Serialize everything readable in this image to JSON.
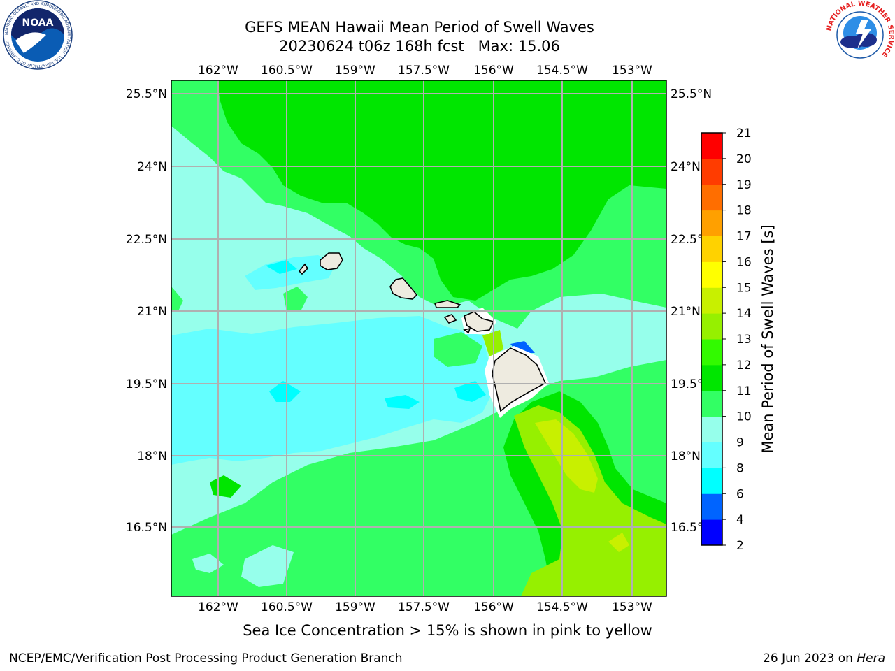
{
  "title": {
    "line1": "GEFS MEAN Hawaii Mean Period of Swell Waves",
    "line2": "20230624 t06z 168h fcst   Max: 15.06"
  },
  "map": {
    "lon_labels": [
      "162°W",
      "160.5°W",
      "159°W",
      "157.5°W",
      "156°W",
      "154.5°W",
      "153°W"
    ],
    "lat_labels": [
      "25.5°N",
      "24°N",
      "22.5°N",
      "21°N",
      "19.5°N",
      "18°N",
      "16.5°N"
    ],
    "islands": [
      "Niihau",
      "Kauai",
      "Oahu",
      "Molokai",
      "Lanai",
      "Maui",
      "Kahoolawe",
      "Hawaii"
    ]
  },
  "colorbar": {
    "label": "Mean Period of Swell Waves [s]",
    "ticks": [
      "2",
      "4",
      "6",
      "8",
      "9",
      "10",
      "11",
      "12",
      "13",
      "14",
      "15",
      "16",
      "17",
      "18",
      "19",
      "20",
      "21"
    ],
    "colors": [
      "#0000ff",
      "#0064ff",
      "#00ffff",
      "#64ffff",
      "#96ffeb",
      "#32ff64",
      "#00e600",
      "#32fa00",
      "#96f000",
      "#c8f000",
      "#ffff00",
      "#ffd200",
      "#ffa000",
      "#ff6e00",
      "#ff3c00",
      "#ff0000"
    ]
  },
  "note": "Sea Ice Concentration > 15% is shown in pink to yellow",
  "footer": {
    "credit": "NCEP/EMC/Verification Post Processing Product Generation Branch",
    "date_prefix": "26 Jun 2023 on ",
    "host": "Hera"
  },
  "logos": {
    "noaa": "NOAA",
    "noaa_ring": "NATIONAL OCEANIC AND ATMOSPHERIC ADMINISTRATION · U.S. DEPARTMENT OF COMMERCE",
    "nws_ring": "NATIONAL WEATHER SERVICE"
  }
}
